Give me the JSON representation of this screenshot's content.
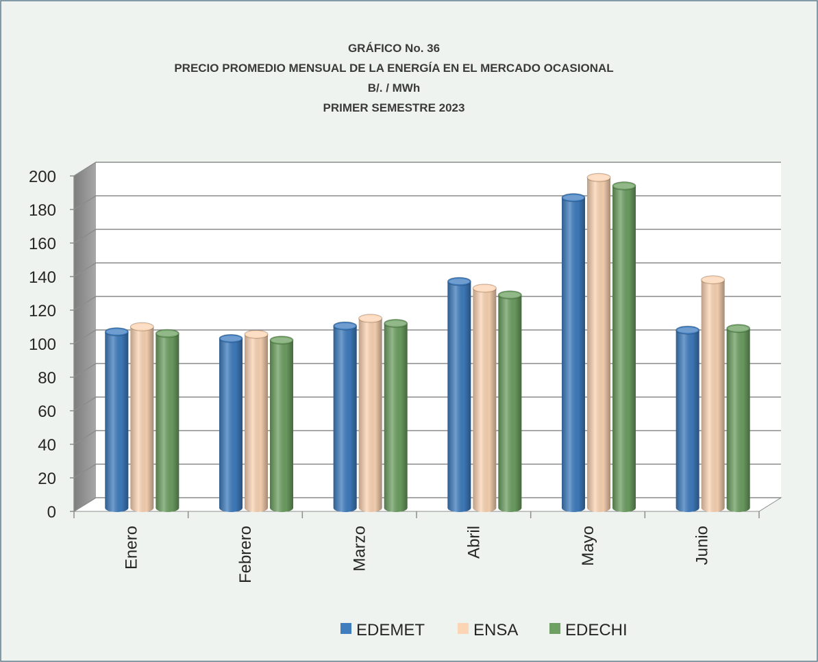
{
  "chart_data": {
    "type": "bar3d",
    "title": "GRÁFICO No. 36",
    "subtitle": [
      "PRECIO PROMEDIO MENSUAL DE LA ENERGÍA EN EL MERCADO OCASIONAL",
      "B/. / MWh",
      "PRIMER SEMESTRE 2023"
    ],
    "categories": [
      "Enero",
      "Febrero",
      "Marzo",
      "Abril",
      "Mayo",
      "Junio"
    ],
    "series": [
      {
        "name": "EDEMET",
        "color": "#3f7dbf",
        "values": [
          103,
          99,
          106.5,
          133,
          183,
          104
        ]
      },
      {
        "name": "ENSA",
        "color": "#fcd5b4",
        "values": [
          106,
          101.5,
          111,
          129,
          195,
          134
        ]
      },
      {
        "name": "EDECHI",
        "color": "#6ea063",
        "values": [
          102,
          98,
          108,
          125,
          190,
          105
        ]
      }
    ],
    "ylim": [
      0,
      200
    ],
    "yticks": [
      0,
      20,
      40,
      60,
      80,
      100,
      120,
      140,
      160,
      180,
      200
    ],
    "grid": true,
    "legend": "bottom"
  }
}
